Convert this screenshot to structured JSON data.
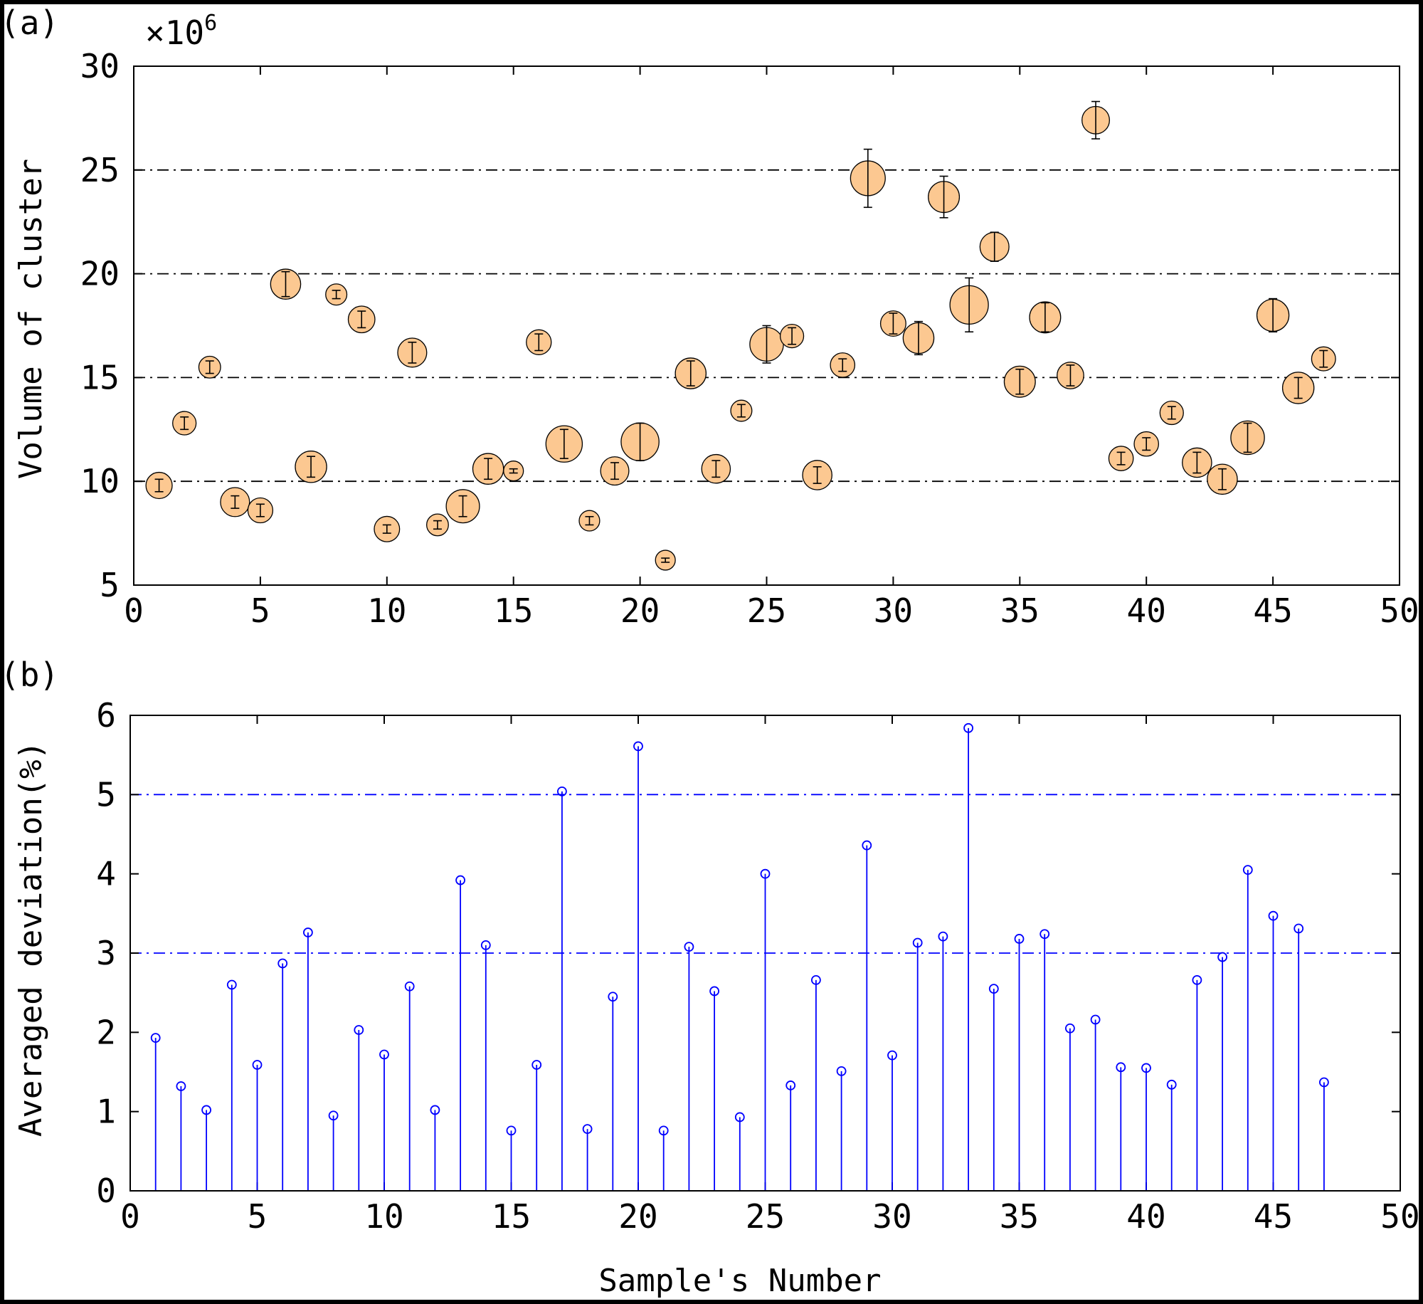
{
  "chart_data": [
    {
      "panel_label": "(a)",
      "type": "scatter",
      "subtype": "bubble-with-errorbars",
      "ylabel": "Volume of cluster",
      "xlabel": "",
      "multiplier_label": "×10",
      "multiplier_exponent": "6",
      "xlim": [
        0,
        50
      ],
      "ylim": [
        5,
        30
      ],
      "xticks": [
        "0",
        "5",
        "10",
        "15",
        "20",
        "25",
        "30",
        "35",
        "40",
        "45",
        "50"
      ],
      "yticks": [
        "5",
        "10",
        "15",
        "20",
        "25",
        "30"
      ],
      "gridlines_y": [
        10,
        15,
        20,
        25
      ],
      "marker_color": "#fcc891",
      "x": [
        1,
        2,
        3,
        4,
        5,
        6,
        7,
        8,
        9,
        10,
        11,
        12,
        13,
        14,
        15,
        16,
        17,
        18,
        19,
        20,
        21,
        22,
        23,
        24,
        25,
        26,
        27,
        28,
        29,
        30,
        31,
        32,
        33,
        34,
        35,
        36,
        37,
        38,
        39,
        40,
        41,
        42,
        43,
        44,
        45,
        46,
        47
      ],
      "y": [
        9.8,
        12.8,
        15.5,
        9.0,
        8.6,
        19.5,
        10.7,
        19.0,
        17.8,
        7.7,
        16.2,
        7.9,
        8.8,
        10.6,
        10.5,
        16.7,
        11.8,
        8.1,
        10.5,
        11.9,
        6.2,
        15.2,
        10.6,
        13.4,
        16.6,
        17.0,
        10.3,
        15.6,
        24.6,
        17.6,
        16.9,
        23.7,
        18.5,
        21.3,
        14.8,
        17.9,
        15.1,
        27.4,
        11.1,
        11.8,
        13.3,
        10.9,
        10.1,
        12.1,
        18.0,
        14.5,
        15.9
      ],
      "error": [
        0.3,
        0.3,
        0.3,
        0.3,
        0.3,
        0.6,
        0.5,
        0.2,
        0.4,
        0.2,
        0.5,
        0.2,
        0.5,
        0.5,
        0.1,
        0.4,
        0.7,
        0.2,
        0.4,
        0.9,
        0.1,
        0.6,
        0.4,
        0.3,
        0.9,
        0.4,
        0.4,
        0.3,
        1.4,
        0.5,
        0.8,
        1.0,
        1.3,
        0.7,
        0.6,
        0.7,
        0.5,
        0.9,
        0.3,
        0.3,
        0.3,
        0.5,
        0.5,
        0.7,
        0.8,
        0.5,
        0.4
      ],
      "size": [
        1.9,
        1.3,
        1.0,
        2.6,
        1.6,
        2.9,
        3.3,
        0.9,
        2.0,
        1.7,
        2.6,
        1.0,
        3.9,
        3.1,
        0.7,
        1.6,
        5.0,
        0.8,
        2.4,
        5.6,
        0.7,
        3.1,
        2.5,
        0.9,
        4.0,
        1.3,
        2.7,
        1.5,
        4.4,
        1.7,
        3.1,
        3.2,
        5.8,
        2.6,
        3.2,
        3.2,
        2.0,
        2.2,
        1.5,
        1.5,
        1.3,
        2.7,
        2.9,
        4.0,
        3.5,
        3.3,
        1.4
      ]
    },
    {
      "panel_label": "(b)",
      "type": "stem",
      "ylabel": "Averaged deviation(%)",
      "xlabel": "Sample's Number",
      "xlim": [
        0,
        50
      ],
      "ylim": [
        0,
        6
      ],
      "xticks": [
        "0",
        "5",
        "10",
        "15",
        "20",
        "25",
        "30",
        "35",
        "40",
        "45",
        "50"
      ],
      "yticks": [
        "0",
        "1",
        "2",
        "3",
        "4",
        "5",
        "6"
      ],
      "reference_lines": [
        3,
        5
      ],
      "color": "#0000ff",
      "x": [
        1,
        2,
        3,
        4,
        5,
        6,
        7,
        8,
        9,
        10,
        11,
        12,
        13,
        14,
        15,
        16,
        17,
        18,
        19,
        20,
        21,
        22,
        23,
        24,
        25,
        26,
        27,
        28,
        29,
        30,
        31,
        32,
        33,
        34,
        35,
        36,
        37,
        38,
        39,
        40,
        41,
        42,
        43,
        44,
        45,
        46,
        47
      ],
      "y": [
        1.93,
        1.32,
        1.02,
        2.6,
        1.59,
        2.87,
        3.26,
        0.95,
        2.03,
        1.72,
        2.58,
        1.02,
        3.92,
        3.1,
        0.76,
        1.59,
        5.04,
        0.78,
        2.45,
        5.61,
        0.76,
        3.08,
        2.52,
        0.93,
        4.0,
        1.33,
        2.66,
        1.51,
        4.36,
        1.71,
        3.13,
        3.21,
        5.84,
        2.55,
        3.18,
        3.24,
        2.05,
        2.16,
        1.56,
        1.55,
        1.34,
        2.66,
        2.95,
        4.05,
        3.47,
        3.31,
        1.37
      ]
    }
  ]
}
